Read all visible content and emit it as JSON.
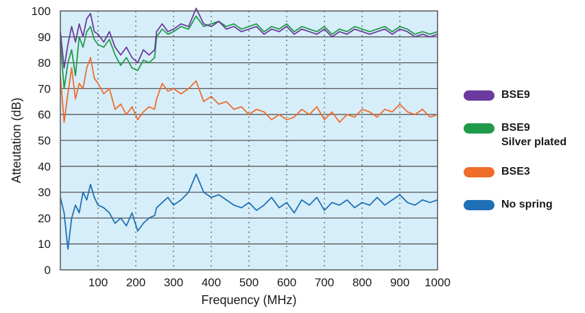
{
  "chart_data": {
    "type": "line",
    "xlabel": "Frequency (MHz)",
    "ylabel": "Atteutation (dB)",
    "xlim": [
      0,
      1000
    ],
    "ylim": [
      0,
      100
    ],
    "x_ticks": [
      "100",
      "200",
      "300",
      "400",
      "500",
      "600",
      "700",
      "800",
      "900",
      "1000"
    ],
    "y_ticks": [
      "0",
      "10",
      "20",
      "30",
      "40",
      "50",
      "60",
      "70",
      "80",
      "90",
      "100"
    ],
    "grid": "horizontal solid, vertical dotted",
    "legend_position": "right",
    "plot_background": "#d6eef9",
    "series": [
      {
        "name": "BSE9",
        "color": "#6b3a9c",
        "x": [
          0,
          10,
          20,
          30,
          40,
          50,
          60,
          70,
          80,
          90,
          100,
          115,
          130,
          145,
          160,
          175,
          190,
          205,
          220,
          235,
          250,
          255,
          270,
          285,
          300,
          320,
          340,
          360,
          380,
          400,
          420,
          440,
          460,
          480,
          500,
          520,
          540,
          560,
          580,
          600,
          620,
          640,
          660,
          680,
          700,
          720,
          740,
          760,
          780,
          800,
          820,
          840,
          860,
          880,
          900,
          920,
          940,
          960,
          980,
          1000
        ],
        "y": [
          92,
          78,
          87,
          94,
          88,
          95,
          90,
          97,
          99,
          92,
          91,
          88,
          92,
          86,
          83,
          86,
          82,
          80,
          85,
          83,
          85,
          92,
          95,
          92,
          93,
          95,
          94,
          101,
          95,
          94,
          96,
          93,
          94,
          92,
          93,
          94,
          91,
          93,
          92,
          94,
          91,
          93,
          92,
          91,
          93,
          90,
          92,
          91,
          93,
          92,
          91,
          92,
          93,
          91,
          93,
          92,
          90,
          91,
          90,
          91
        ]
      },
      {
        "name": "BSE9 Silver plated",
        "color": "#1f9a48",
        "x": [
          0,
          10,
          20,
          30,
          40,
          50,
          60,
          70,
          80,
          90,
          100,
          115,
          130,
          145,
          160,
          175,
          190,
          205,
          220,
          235,
          250,
          255,
          270,
          285,
          300,
          320,
          340,
          360,
          380,
          400,
          420,
          440,
          460,
          480,
          500,
          520,
          540,
          560,
          580,
          600,
          620,
          640,
          660,
          680,
          700,
          720,
          740,
          760,
          780,
          800,
          820,
          840,
          860,
          880,
          900,
          920,
          940,
          960,
          980,
          1000
        ],
        "y": [
          88,
          70,
          80,
          85,
          75,
          90,
          86,
          92,
          94,
          89,
          87,
          86,
          89,
          83,
          79,
          82,
          78,
          77,
          81,
          80,
          82,
          90,
          93,
          91,
          92,
          94,
          93,
          98,
          94,
          95,
          96,
          94,
          95,
          93,
          94,
          95,
          92,
          94,
          93,
          95,
          92,
          94,
          93,
          92,
          94,
          91,
          93,
          92,
          94,
          93,
          92,
          93,
          94,
          92,
          94,
          93,
          91,
          92,
          91,
          92
        ]
      },
      {
        "name": "BSE3",
        "color": "#ef6c2a",
        "x": [
          0,
          10,
          20,
          30,
          40,
          50,
          60,
          70,
          80,
          90,
          100,
          115,
          130,
          145,
          160,
          175,
          190,
          205,
          220,
          235,
          250,
          255,
          270,
          285,
          300,
          320,
          340,
          360,
          380,
          400,
          420,
          440,
          460,
          480,
          500,
          520,
          540,
          560,
          580,
          600,
          620,
          640,
          660,
          680,
          700,
          720,
          740,
          760,
          780,
          800,
          820,
          840,
          860,
          880,
          900,
          920,
          940,
          960,
          980,
          1000
        ],
        "y": [
          75,
          57,
          68,
          78,
          66,
          72,
          70,
          78,
          82,
          74,
          72,
          68,
          70,
          62,
          64,
          60,
          63,
          58,
          61,
          63,
          62,
          66,
          72,
          69,
          70,
          68,
          70,
          73,
          65,
          67,
          64,
          65,
          62,
          63,
          60,
          62,
          61,
          58,
          60,
          58,
          59,
          62,
          60,
          63,
          58,
          61,
          57,
          60,
          59,
          62,
          61,
          59,
          62,
          61,
          64,
          61,
          60,
          62,
          59,
          60
        ]
      },
      {
        "name": "No spring",
        "color": "#1f6fb5",
        "x": [
          0,
          10,
          20,
          30,
          40,
          50,
          60,
          70,
          80,
          90,
          100,
          115,
          130,
          145,
          160,
          175,
          190,
          205,
          220,
          235,
          250,
          255,
          270,
          285,
          300,
          320,
          340,
          360,
          380,
          400,
          420,
          440,
          460,
          480,
          500,
          520,
          540,
          560,
          580,
          600,
          620,
          640,
          660,
          680,
          700,
          720,
          740,
          760,
          780,
          800,
          820,
          840,
          860,
          880,
          900,
          920,
          940,
          960,
          980,
          1000
        ],
        "y": [
          28,
          22,
          8,
          20,
          25,
          22,
          30,
          27,
          33,
          28,
          25,
          24,
          22,
          18,
          20,
          17,
          22,
          15,
          18,
          20,
          21,
          24,
          26,
          28,
          25,
          27,
          30,
          37,
          30,
          28,
          29,
          27,
          25,
          24,
          26,
          23,
          25,
          28,
          24,
          26,
          22,
          27,
          25,
          28,
          23,
          26,
          25,
          27,
          24,
          26,
          25,
          28,
          25,
          27,
          29,
          26,
          25,
          27,
          26,
          27
        ]
      }
    ]
  },
  "legend": [
    {
      "label": "BSE9",
      "sub": "",
      "color": "#6b3a9c"
    },
    {
      "label": "BSE9",
      "sub": "Silver plated",
      "color": "#1f9a48"
    },
    {
      "label": "BSE3",
      "sub": "",
      "color": "#ef6c2a"
    },
    {
      "label": "No spring",
      "sub": "",
      "color": "#1f6fb5"
    }
  ]
}
